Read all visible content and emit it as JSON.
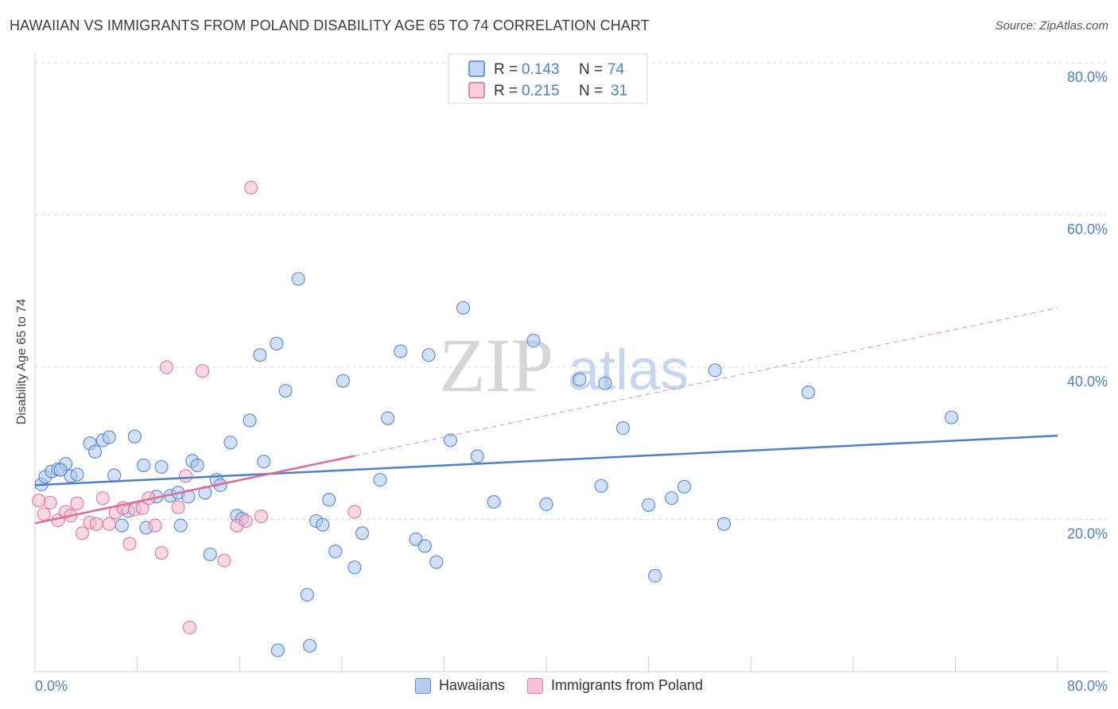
{
  "chart_data": {
    "type": "scatter",
    "title": "HAWAIIAN VS IMMIGRANTS FROM POLAND DISABILITY AGE 65 TO 74 CORRELATION CHART",
    "source": "Source: ZipAtlas.com",
    "ylabel": "Disability Age 65 to 74",
    "xlabel": "",
    "xlim": [
      0,
      80
    ],
    "ylim": [
      0,
      80
    ],
    "x_tick_labels": [
      "0.0%",
      "80.0%"
    ],
    "y_tick_labels": [
      {
        "value": 20,
        "label": "20.0%"
      },
      {
        "value": 40,
        "label": "40.0%"
      },
      {
        "value": 60,
        "label": "60.0%"
      },
      {
        "value": 80,
        "label": "80.0%"
      }
    ],
    "grid": true,
    "watermark": {
      "zip": "ZIP",
      "atlas": "atlas"
    },
    "series": [
      {
        "name": "Hawaiians",
        "color": "#4a7fd4",
        "fill": "#a9c6ee",
        "legend": {
          "r_label": "R =",
          "r": "0.143",
          "n_label": "N =",
          "n": "74"
        },
        "trend": {
          "x0": 0,
          "y0": 24.5,
          "x1": 80,
          "y1": 31.0,
          "dashed_from": null
        },
        "points": [
          [
            0.5,
            24.6
          ],
          [
            0.8,
            25.6
          ],
          [
            1.3,
            26.3
          ],
          [
            1.8,
            26.6
          ],
          [
            2.4,
            27.3
          ],
          [
            2.8,
            25.7
          ],
          [
            3.3,
            25.9
          ],
          [
            4.3,
            30.0
          ],
          [
            4.7,
            28.9
          ],
          [
            5.3,
            30.4
          ],
          [
            5.8,
            30.8
          ],
          [
            6.2,
            25.8
          ],
          [
            6.8,
            19.2
          ],
          [
            7.3,
            21.1
          ],
          [
            7.8,
            30.9
          ],
          [
            8.5,
            27.1
          ],
          [
            8.7,
            18.9
          ],
          [
            9.5,
            23.0
          ],
          [
            9.9,
            26.9
          ],
          [
            10.6,
            23.1
          ],
          [
            11.2,
            23.5
          ],
          [
            11.4,
            19.2
          ],
          [
            12.0,
            23.0
          ],
          [
            12.3,
            27.7
          ],
          [
            12.7,
            27.1
          ],
          [
            13.3,
            23.5
          ],
          [
            13.7,
            15.4
          ],
          [
            14.2,
            25.2
          ],
          [
            14.5,
            24.5
          ],
          [
            15.3,
            30.1
          ],
          [
            15.8,
            20.5
          ],
          [
            16.2,
            20.1
          ],
          [
            16.8,
            33.0
          ],
          [
            17.6,
            41.6
          ],
          [
            17.9,
            27.6
          ],
          [
            18.9,
            43.1
          ],
          [
            19.6,
            36.9
          ],
          [
            20.6,
            51.6
          ],
          [
            21.3,
            10.1
          ],
          [
            21.5,
            3.4
          ],
          [
            22.0,
            19.8
          ],
          [
            22.5,
            19.3
          ],
          [
            23.0,
            22.6
          ],
          [
            23.5,
            15.8
          ],
          [
            24.1,
            38.2
          ],
          [
            25.0,
            13.7
          ],
          [
            25.6,
            18.2
          ],
          [
            27.0,
            25.2
          ],
          [
            27.6,
            33.3
          ],
          [
            28.6,
            42.1
          ],
          [
            29.8,
            17.4
          ],
          [
            30.5,
            16.5
          ],
          [
            30.8,
            41.6
          ],
          [
            31.4,
            14.4
          ],
          [
            32.5,
            30.4
          ],
          [
            33.5,
            47.8
          ],
          [
            34.6,
            28.3
          ],
          [
            35.9,
            22.3
          ],
          [
            39.0,
            43.5
          ],
          [
            40.0,
            22.0
          ],
          [
            42.6,
            38.4
          ],
          [
            44.3,
            24.4
          ],
          [
            44.6,
            37.9
          ],
          [
            46.0,
            32.0
          ],
          [
            48.0,
            21.9
          ],
          [
            48.5,
            12.6
          ],
          [
            49.8,
            22.8
          ],
          [
            50.8,
            24.3
          ],
          [
            53.2,
            39.6
          ],
          [
            53.9,
            19.4
          ],
          [
            60.5,
            36.7
          ],
          [
            71.7,
            33.4
          ],
          [
            19.0,
            2.8
          ],
          [
            2.0,
            26.5
          ]
        ]
      },
      {
        "name": "Immigrants from Poland",
        "color": "#e06b94",
        "fill": "#f6b8cb",
        "legend": {
          "r_label": "R =",
          "r": "0.215",
          "n_label": "N =",
          "n": "31"
        },
        "trend": {
          "x0": 0,
          "y0": 19.5,
          "x1": 80,
          "y1": 47.8,
          "solid_until": 25
        },
        "points": [
          [
            0.3,
            22.5
          ],
          [
            0.7,
            20.7
          ],
          [
            1.2,
            22.2
          ],
          [
            1.8,
            19.9
          ],
          [
            2.4,
            21.0
          ],
          [
            2.8,
            20.5
          ],
          [
            3.3,
            22.1
          ],
          [
            3.7,
            18.2
          ],
          [
            4.3,
            19.6
          ],
          [
            4.8,
            19.4
          ],
          [
            5.3,
            22.8
          ],
          [
            5.8,
            19.4
          ],
          [
            6.3,
            20.9
          ],
          [
            6.9,
            21.5
          ],
          [
            7.4,
            16.8
          ],
          [
            7.8,
            21.3
          ],
          [
            8.4,
            21.5
          ],
          [
            8.9,
            22.8
          ],
          [
            9.4,
            19.2
          ],
          [
            9.9,
            15.6
          ],
          [
            10.3,
            40.0
          ],
          [
            11.2,
            21.6
          ],
          [
            11.8,
            25.7
          ],
          [
            12.1,
            5.8
          ],
          [
            13.1,
            39.5
          ],
          [
            14.8,
            14.6
          ],
          [
            15.8,
            19.2
          ],
          [
            16.5,
            19.8
          ],
          [
            16.9,
            63.6
          ],
          [
            17.7,
            20.4
          ],
          [
            25.0,
            21.0
          ]
        ]
      }
    ]
  }
}
